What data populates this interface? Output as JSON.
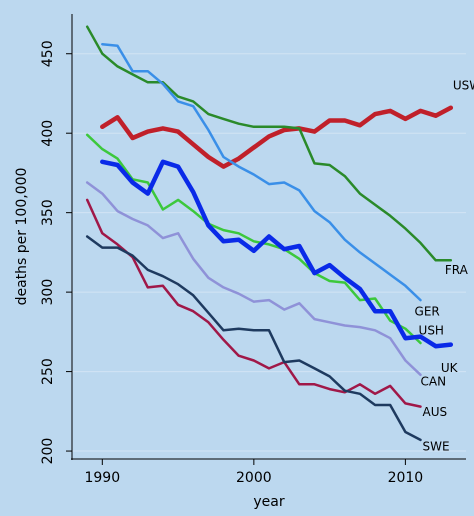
{
  "chart_data": {
    "type": "line",
    "title": "",
    "xlabel": "year",
    "ylabel": "deaths per 100,000",
    "xlim": [
      1988,
      2014
    ],
    "ylim": [
      195,
      475
    ],
    "x_ticks": [
      1990,
      2000,
      2010
    ],
    "y_ticks": [
      200,
      250,
      300,
      350,
      400,
      450
    ],
    "grid": "horizontal",
    "legend": "labels at right end of lines",
    "background": "#bcd8ef",
    "series": [
      {
        "name": "USW",
        "color": "#c0202a",
        "width": 4.5,
        "x": [
          1990,
          1991,
          1992,
          1993,
          1994,
          1995,
          1996,
          1997,
          1998,
          1999,
          2000,
          2001,
          2002,
          2003,
          2004,
          2005,
          2006,
          2007,
          2008,
          2009,
          2010,
          2011,
          2012,
          2013
        ],
        "y": [
          404,
          410,
          397,
          401,
          403,
          401,
          393,
          385,
          379,
          384,
          391,
          398,
          402,
          403,
          401,
          408,
          408,
          405,
          412,
          414,
          409,
          414,
          411,
          416
        ]
      },
      {
        "name": "FRA",
        "color": "#2a8a2a",
        "width": 2.5,
        "x": [
          1989,
          1990,
          1991,
          1992,
          1993,
          1994,
          1995,
          1996,
          1997,
          1998,
          1999,
          2000,
          2001,
          2002,
          2003,
          2004,
          2005,
          2006,
          2007,
          2008,
          2009,
          2010,
          2011,
          2012,
          2013
        ],
        "y": [
          467,
          450,
          442,
          437,
          432,
          432,
          423,
          420,
          412,
          409,
          406,
          404,
          404,
          404,
          403,
          381,
          380,
          373,
          362,
          355,
          348,
          340,
          331,
          320,
          320
        ]
      },
      {
        "name": "GER",
        "color": "#3a8fe8",
        "width": 2.5,
        "x": [
          1990,
          1991,
          1992,
          1993,
          1994,
          1995,
          1996,
          1997,
          1998,
          1999,
          2000,
          2001,
          2002,
          2003,
          2004,
          2005,
          2006,
          2007,
          2008,
          2009,
          2010,
          2011
        ],
        "y": [
          456,
          455,
          439,
          439,
          431,
          420,
          417,
          402,
          385,
          379,
          374,
          368,
          369,
          364,
          351,
          344,
          333,
          325,
          318,
          311,
          304,
          295
        ]
      },
      {
        "name": "USH",
        "color": "#3cc83c",
        "width": 2.5,
        "x": [
          1989,
          1990,
          1991,
          1992,
          1993,
          1994,
          1995,
          1996,
          1997,
          1998,
          1999,
          2000,
          2001,
          2002,
          2003,
          2004,
          2005,
          2006,
          2007,
          2008,
          2009,
          2010,
          2011
        ],
        "y": [
          399,
          390,
          384,
          371,
          369,
          352,
          358,
          351,
          343,
          339,
          337,
          332,
          330,
          327,
          321,
          312,
          307,
          306,
          295,
          296,
          282,
          277,
          268
        ]
      },
      {
        "name": "UK",
        "color": "#0a2ae8",
        "width": 4.5,
        "x": [
          1990,
          1991,
          1992,
          1993,
          1994,
          1995,
          1996,
          1997,
          1998,
          1999,
          2000,
          2001,
          2002,
          2003,
          2004,
          2005,
          2006,
          2007,
          2008,
          2009,
          2010,
          2011,
          2012,
          2013
        ],
        "y": [
          382,
          380,
          369,
          362,
          382,
          379,
          363,
          342,
          332,
          333,
          326,
          335,
          327,
          329,
          312,
          317,
          309,
          302,
          288,
          288,
          271,
          272,
          266,
          267
        ]
      },
      {
        "name": "CAN",
        "color": "#8f92d8",
        "width": 2.5,
        "x": [
          1989,
          1990,
          1991,
          1992,
          1993,
          1994,
          1995,
          1996,
          1997,
          1998,
          1999,
          2000,
          2001,
          2002,
          2003,
          2004,
          2005,
          2006,
          2007,
          2008,
          2009,
          2010,
          2011
        ],
        "y": [
          369,
          362,
          351,
          346,
          342,
          334,
          337,
          321,
          309,
          303,
          299,
          294,
          295,
          289,
          293,
          283,
          281,
          279,
          278,
          276,
          271,
          257,
          248
        ]
      },
      {
        "name": "AUS",
        "color": "#a01848",
        "width": 2.5,
        "x": [
          1989,
          1990,
          1991,
          1992,
          1993,
          1994,
          1995,
          1996,
          1997,
          1998,
          1999,
          2000,
          2001,
          2002,
          2003,
          2004,
          2005,
          2006,
          2007,
          2008,
          2009,
          2010,
          2011
        ],
        "y": [
          358,
          337,
          330,
          322,
          303,
          304,
          292,
          288,
          281,
          270,
          260,
          257,
          252,
          256,
          242,
          242,
          239,
          237,
          242,
          236,
          241,
          230,
          228
        ]
      },
      {
        "name": "SWE",
        "color": "#1e3a5f",
        "width": 2.5,
        "x": [
          1989,
          1990,
          1991,
          1992,
          1993,
          1994,
          1995,
          1996,
          1997,
          1998,
          1999,
          2000,
          2001,
          2002,
          2003,
          2004,
          2005,
          2006,
          2007,
          2008,
          2009,
          2010,
          2011
        ],
        "y": [
          335,
          328,
          328,
          323,
          314,
          310,
          305,
          298,
          287,
          276,
          277,
          276,
          276,
          256,
          257,
          252,
          247,
          238,
          236,
          229,
          229,
          212,
          207
        ]
      }
    ]
  }
}
